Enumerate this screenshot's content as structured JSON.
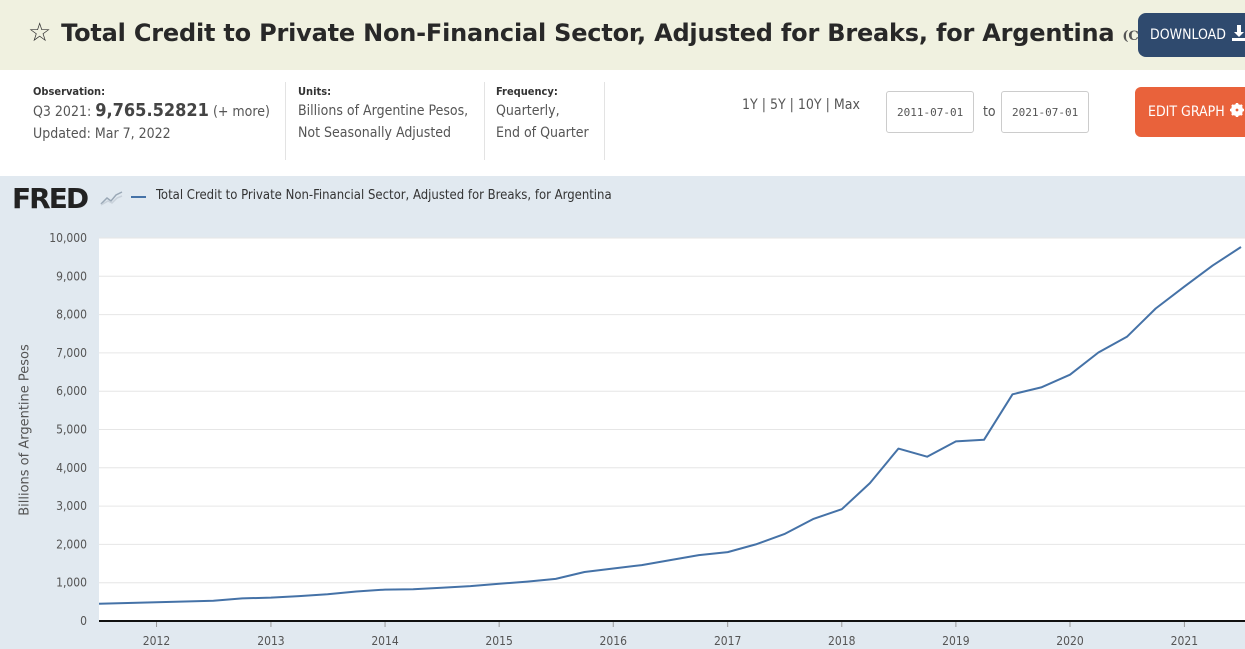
{
  "header": {
    "star_icon": "star-outline-icon",
    "title": "Total Credit to Private Non-Financial Sector, Adjusted for Breaks, for Argentina",
    "series_id": "(CRDQARAPABIS)",
    "download_label": "DOWNLOAD",
    "download_icon": "download-icon"
  },
  "meta": {
    "observation_label": "Observation:",
    "observation_period": "Q3 2021:",
    "observation_value": "9,765.52821",
    "observation_more": "(+ more)",
    "updated": "Updated: Mar 7, 2022",
    "units_label": "Units:",
    "units_line1": "Billions of Argentine Pesos,",
    "units_line2": "Not Seasonally Adjusted",
    "frequency_label": "Frequency:",
    "frequency_line1": "Quarterly,",
    "frequency_line2": "End of Quarter"
  },
  "controls": {
    "ranges": [
      "1Y",
      "5Y",
      "10Y",
      "Max"
    ],
    "separator": "|",
    "start_date": "2011-07-01",
    "to_label": "to",
    "end_date": "2021-07-01",
    "edit_label": "EDIT GRAPH",
    "edit_icon": "gear-icon"
  },
  "chart_data": {
    "type": "line",
    "logo": "FRED",
    "legend": "Total Credit to Private Non-Financial Sector, Adjusted for Breaks, for Argentina",
    "ylabel": "Billions of Argentine Pesos",
    "ylim": [
      0,
      10000
    ],
    "yticks": [
      "0",
      "1,000",
      "2,000",
      "3,000",
      "4,000",
      "5,000",
      "6,000",
      "7,000",
      "8,000",
      "9,000",
      "10,000"
    ],
    "xticks": [
      "2012",
      "2013",
      "2014",
      "2015",
      "2016",
      "2017",
      "2018",
      "2019",
      "2020",
      "2021"
    ],
    "line_color": "#4572a7",
    "series": [
      {
        "x": [
          "2011-07-01",
          "2011-10-01",
          "2012-01-01",
          "2012-04-01",
          "2012-07-01",
          "2012-10-01",
          "2013-01-01",
          "2013-04-01",
          "2013-07-01",
          "2013-10-01",
          "2014-01-01",
          "2014-04-01",
          "2014-07-01",
          "2014-10-01",
          "2015-01-01",
          "2015-04-01",
          "2015-07-01",
          "2015-10-01",
          "2016-01-01",
          "2016-04-01",
          "2016-07-01",
          "2016-10-01",
          "2017-01-01",
          "2017-04-01",
          "2017-07-01",
          "2017-10-01",
          "2018-01-01",
          "2018-04-01",
          "2018-07-01",
          "2018-10-01",
          "2019-01-01",
          "2019-04-01",
          "2019-07-01",
          "2019-10-01",
          "2020-01-01",
          "2020-04-01",
          "2020-07-01",
          "2020-10-01",
          "2021-01-01",
          "2021-04-01",
          "2021-07-01"
        ],
        "values": [
          450,
          470,
          490,
          510,
          530,
          590,
          610,
          650,
          700,
          770,
          820,
          830,
          870,
          910,
          970,
          1030,
          1100,
          1280,
          1370,
          1460,
          1590,
          1720,
          1800,
          2000,
          2270,
          2660,
          2920,
          3600,
          4500,
          4290,
          4690,
          4730,
          5920,
          6100,
          6430,
          7010,
          7420,
          8160,
          8730,
          9280,
          9765.52821
        ]
      }
    ]
  }
}
